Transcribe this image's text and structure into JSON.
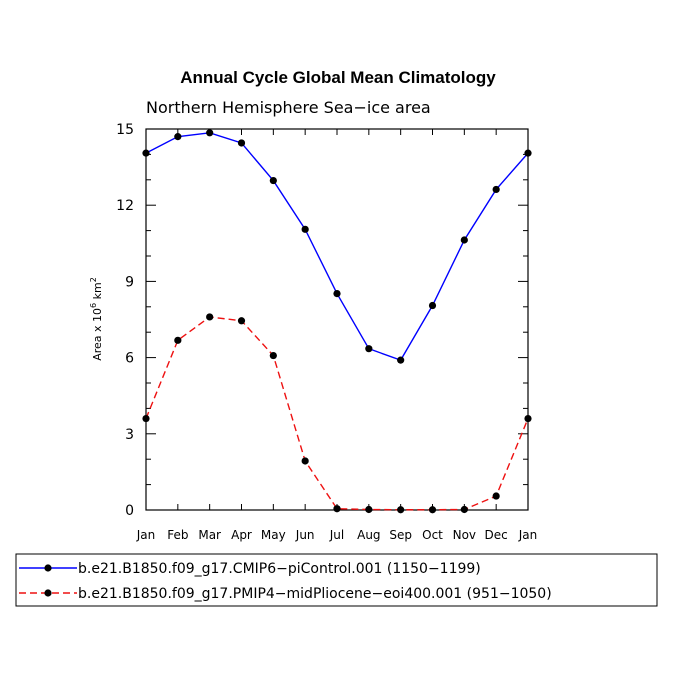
{
  "chart_data": {
    "type": "line",
    "title": "Annual Cycle Global Mean Climatology",
    "subtitle": "Northern Hemisphere Sea−ice area",
    "ylabel": {
      "prefix": "Area x 10",
      "exponent": "6",
      "unit": " km",
      "unit_exponent": "2"
    },
    "categories": [
      "Jan",
      "Feb",
      "Mar",
      "Apr",
      "May",
      "Jun",
      "Jul",
      "Aug",
      "Sep",
      "Oct",
      "Nov",
      "Dec",
      "Jan"
    ],
    "ylim": [
      0,
      15
    ],
    "yticks": [
      0,
      3,
      6,
      9,
      12,
      15
    ],
    "y_minor_step": 1,
    "series": [
      {
        "name": "b.e21.B1850.f09_g17.CMIP6−piControl.001 (1150−1199)",
        "color": "#0000ff",
        "dash": "solid",
        "values": [
          14.05,
          14.7,
          14.85,
          14.45,
          12.97,
          11.05,
          8.52,
          6.35,
          5.9,
          8.05,
          10.63,
          12.62,
          14.05
        ]
      },
      {
        "name": "b.e21.B1850.f09_g17.PMIP4−midPliocene−eoi400.001 (951−1050)",
        "color": "#ee1111",
        "dash": "dashed",
        "values": [
          3.6,
          6.68,
          7.6,
          7.45,
          6.08,
          1.93,
          0.05,
          0.02,
          0.01,
          0.01,
          0.02,
          0.55,
          3.6
        ]
      }
    ]
  }
}
